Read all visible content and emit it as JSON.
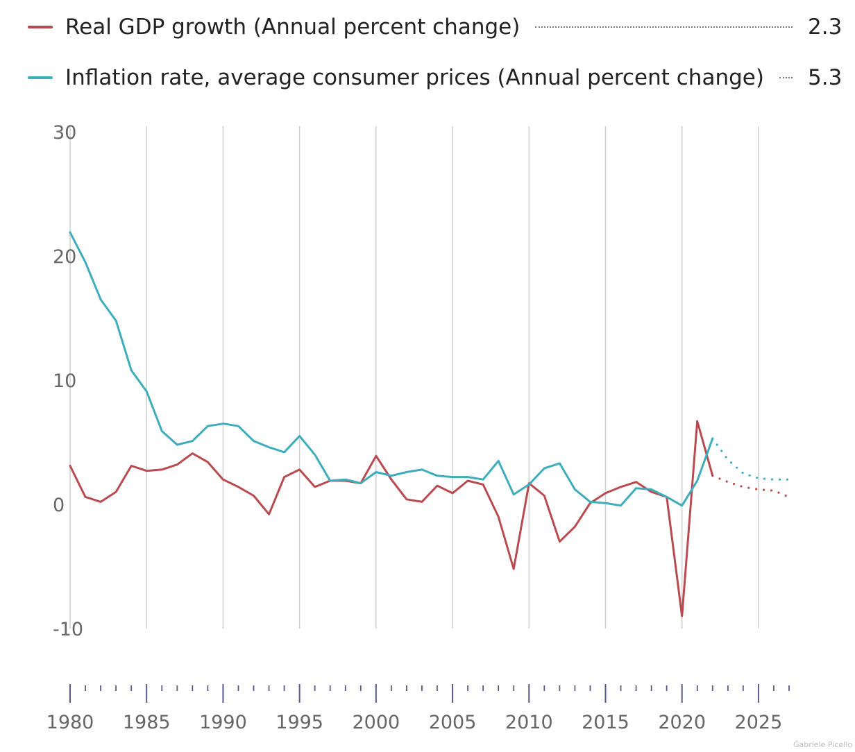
{
  "legend": {
    "gdp_label": "Real GDP growth (Annual percent change)",
    "gdp_value": "2.3",
    "inflation_label": "Inflation rate, average consumer prices (Annual percent change)",
    "inflation_value": "5.3"
  },
  "credit": "Gabriele Picello",
  "colors": {
    "gdp": "#b84a50",
    "inflation": "#3eadbb",
    "grid": "#cfcfcf",
    "axis_ticks": "#5a5a8a"
  },
  "chart_data": {
    "type": "line",
    "xlim": [
      1980,
      2027
    ],
    "ylim": [
      -10,
      30
    ],
    "y_ticks": [
      -10,
      0,
      10,
      20,
      30
    ],
    "x_ticks": [
      1980,
      1985,
      1990,
      1995,
      2000,
      2005,
      2010,
      2015,
      2020,
      2025
    ],
    "forecast_start": 2022,
    "grid": "vertical",
    "series": [
      {
        "name": "Real GDP growth (Annual percent change)",
        "color": "#b84a50",
        "x": [
          1980,
          1981,
          1982,
          1983,
          1984,
          1985,
          1986,
          1987,
          1988,
          1989,
          1990,
          1991,
          1992,
          1993,
          1994,
          1995,
          1996,
          1997,
          1998,
          1999,
          2000,
          2001,
          2002,
          2003,
          2004,
          2005,
          2006,
          2007,
          2008,
          2009,
          2010,
          2011,
          2012,
          2013,
          2014,
          2015,
          2016,
          2017,
          2018,
          2019,
          2020,
          2021,
          2022,
          2023,
          2024,
          2025,
          2026,
          2027
        ],
        "values": [
          3.1,
          0.6,
          0.2,
          1.0,
          3.1,
          2.7,
          2.8,
          3.2,
          4.1,
          3.4,
          2.0,
          1.4,
          0.7,
          -0.8,
          2.2,
          2.8,
          1.4,
          1.9,
          1.9,
          1.7,
          3.9,
          2.0,
          0.4,
          0.2,
          1.5,
          0.9,
          1.9,
          1.6,
          -1.0,
          -5.2,
          1.7,
          0.7,
          -3.0,
          -1.8,
          0.1,
          0.9,
          1.4,
          1.8,
          1.0,
          0.6,
          -9.0,
          6.7,
          2.3,
          1.8,
          1.4,
          1.2,
          1.1,
          0.6
        ]
      },
      {
        "name": "Inflation rate, average consumer prices (Annual percent change)",
        "color": "#3eadbb",
        "x": [
          1980,
          1981,
          1982,
          1983,
          1984,
          1985,
          1986,
          1987,
          1988,
          1989,
          1990,
          1991,
          1992,
          1993,
          1994,
          1995,
          1996,
          1997,
          1998,
          1999,
          2000,
          2001,
          2002,
          2003,
          2004,
          2005,
          2006,
          2007,
          2008,
          2009,
          2010,
          2011,
          2012,
          2013,
          2014,
          2015,
          2016,
          2017,
          2018,
          2019,
          2020,
          2021,
          2022,
          2023,
          2024,
          2025,
          2026,
          2027
        ],
        "values": [
          21.9,
          19.5,
          16.5,
          14.8,
          10.8,
          9.1,
          5.9,
          4.8,
          5.1,
          6.3,
          6.5,
          6.3,
          5.1,
          4.6,
          4.2,
          5.5,
          4.0,
          1.9,
          2.0,
          1.7,
          2.6,
          2.3,
          2.6,
          2.8,
          2.3,
          2.2,
          2.2,
          2.0,
          3.5,
          0.8,
          1.6,
          2.9,
          3.3,
          1.2,
          0.2,
          0.1,
          -0.1,
          1.3,
          1.2,
          0.6,
          -0.1,
          1.9,
          5.3,
          3.6,
          2.5,
          2.1,
          2.0,
          2.0
        ]
      }
    ]
  }
}
